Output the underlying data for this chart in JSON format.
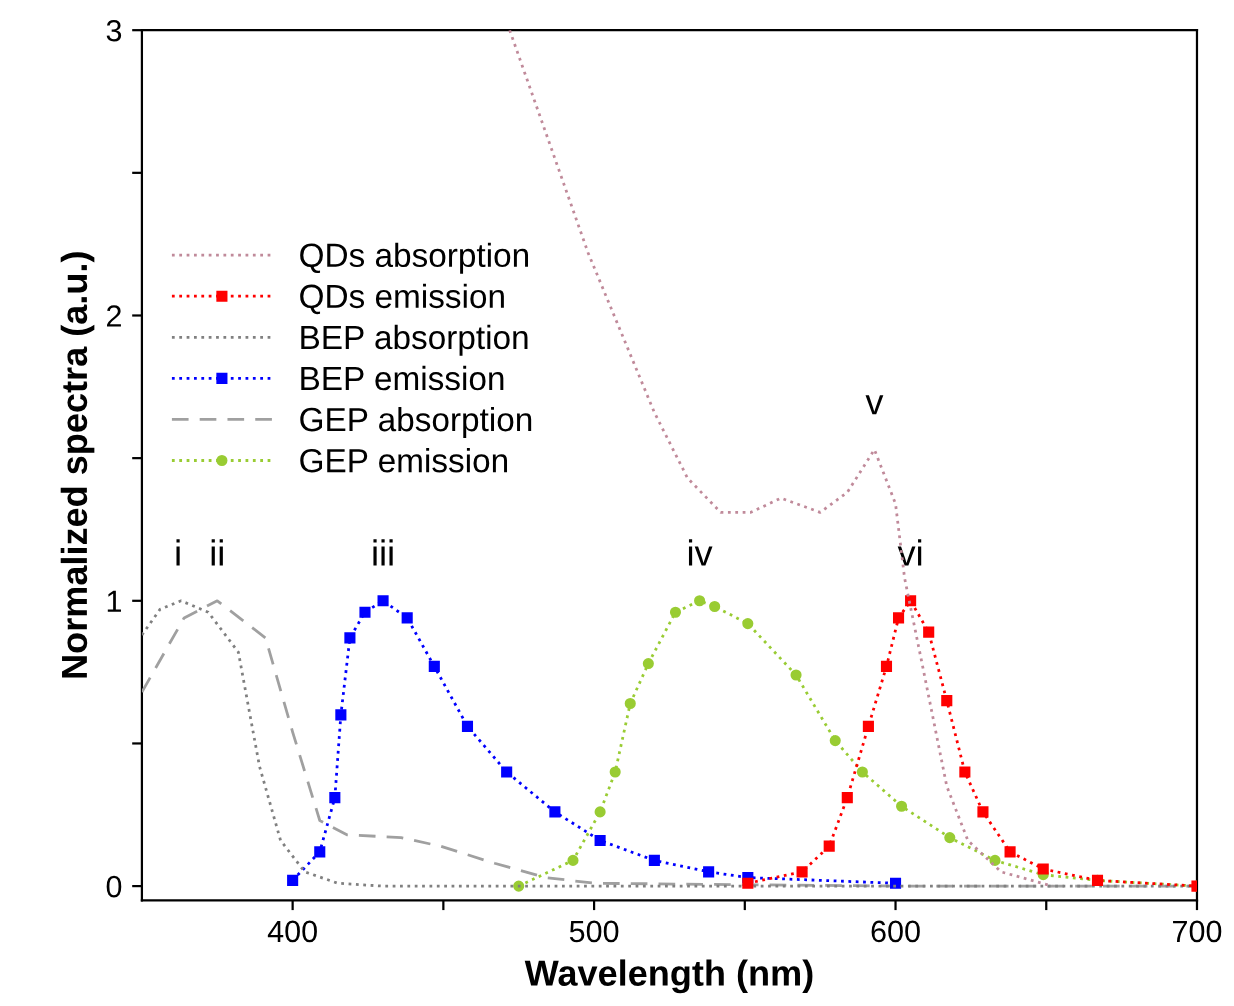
{
  "chart_data": {
    "type": "line",
    "xlabel": "Wavelength (nm)",
    "ylabel": "Normalized spectra (a.u.)",
    "xlim": [
      350,
      700
    ],
    "ylim": [
      -0.05,
      3
    ],
    "xticks": [
      400,
      {
        "value": 450,
        "label": null
      },
      500,
      {
        "value": 550,
        "label": null
      },
      600,
      {
        "value": 650,
        "label": null
      },
      700
    ],
    "yticks": [
      0,
      {
        "value": 0.5,
        "label": null
      },
      1,
      {
        "value": 1.5,
        "label": null
      },
      2,
      {
        "value": 2.5,
        "label": null
      },
      3
    ],
    "grid": false,
    "legend": "left",
    "series": [
      {
        "name": "QDs absorption",
        "color": "#c08a9a",
        "marker": "none",
        "line_style": "dotted",
        "x": [
          472,
          498,
          520,
          531,
          542,
          552,
          562,
          575,
          584,
          593,
          600,
          603,
          609,
          617,
          624,
          635,
          652
        ],
        "values": [
          3.0,
          2.22,
          1.66,
          1.43,
          1.31,
          1.31,
          1.36,
          1.31,
          1.38,
          1.53,
          1.34,
          1.08,
          0.77,
          0.35,
          0.16,
          0.05,
          0
        ]
      },
      {
        "name": "QDs emission",
        "color": "#ff0000",
        "marker": "square",
        "line_style": "dotted",
        "x": [
          551,
          569,
          578,
          584,
          591,
          597,
          601,
          605,
          611,
          617,
          623,
          629,
          638,
          649,
          667,
          700
        ],
        "values": [
          0.01,
          0.05,
          0.14,
          0.31,
          0.56,
          0.77,
          0.94,
          1.0,
          0.89,
          0.65,
          0.4,
          0.26,
          0.12,
          0.06,
          0.02,
          0
        ]
      },
      {
        "name": "BEP absorption",
        "color": "#808080",
        "marker": "none",
        "line_style": "dotted",
        "x": [
          350,
          356,
          363,
          372,
          382,
          389,
          396,
          404,
          415,
          430,
          500,
          600,
          700
        ],
        "values": [
          0.88,
          0.97,
          1.0,
          0.96,
          0.82,
          0.42,
          0.16,
          0.05,
          0.01,
          0,
          0,
          0,
          0
        ]
      },
      {
        "name": "BEP emission",
        "color": "#0000ff",
        "marker": "square",
        "line_style": "dotted",
        "x": [
          400,
          409,
          414,
          416,
          419,
          424,
          430,
          438,
          447,
          458,
          471,
          487,
          502,
          520,
          538,
          551,
          600
        ],
        "values": [
          0.02,
          0.12,
          0.31,
          0.6,
          0.87,
          0.96,
          1.0,
          0.94,
          0.77,
          0.56,
          0.4,
          0.26,
          0.16,
          0.09,
          0.05,
          0.03,
          0.01
        ]
      },
      {
        "name": "GEP absorption",
        "color": "#a0a0a0",
        "marker": "none",
        "line_style": "dashed",
        "x": [
          350,
          364,
          375,
          391,
          400,
          409,
          418,
          436,
          449,
          467,
          484,
          500,
          600,
          700
        ],
        "values": [
          0.68,
          0.94,
          1.0,
          0.87,
          0.54,
          0.23,
          0.18,
          0.17,
          0.14,
          0.08,
          0.03,
          0.01,
          0,
          0
        ]
      },
      {
        "name": "GEP emission",
        "color": "#99cc33",
        "marker": "circle",
        "line_style": "dotted",
        "x": [
          475,
          493,
          502,
          507,
          512,
          518,
          527,
          535,
          540,
          551,
          567,
          580,
          589,
          602,
          618,
          633,
          649,
          667,
          700
        ],
        "values": [
          0,
          0.09,
          0.26,
          0.4,
          0.64,
          0.78,
          0.96,
          1.0,
          0.98,
          0.92,
          0.74,
          0.51,
          0.4,
          0.28,
          0.17,
          0.09,
          0.04,
          0.02,
          0
        ]
      }
    ],
    "annotations": [
      {
        "text": "i",
        "x": 362,
        "y": 1.0
      },
      {
        "text": "ii",
        "x": 375,
        "y": 1.0
      },
      {
        "text": "iii",
        "x": 430,
        "y": 1.0
      },
      {
        "text": "iv",
        "x": 535,
        "y": 1.0
      },
      {
        "text": "v",
        "x": 593,
        "y": 1.53
      },
      {
        "text": "vi",
        "x": 605,
        "y": 1.0
      }
    ]
  }
}
